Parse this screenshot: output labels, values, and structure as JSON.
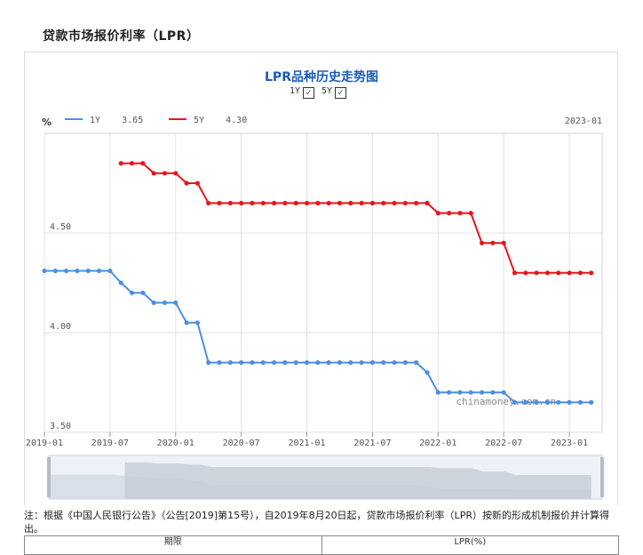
{
  "page": {
    "heading": "贷款市场报价利率（LPR）",
    "note": "注：根据《中国人民银行公告》（公告[2019]第15号），自2019年8月20日起，贷款市场报价利率（LPR）按新的形成机制报价并计算得出。",
    "table_headers": [
      "期限",
      "LPR(%)"
    ]
  },
  "controls": {
    "toggle_1y": "1Y",
    "toggle_5y": "5Y",
    "check_mark": "✓"
  },
  "colors": {
    "one_year": "#4a90e2",
    "five_year": "#e8141c",
    "title": "#1a5cb8"
  },
  "chart_data": {
    "type": "line",
    "title": "LPR品种历史走势图",
    "unit": "%",
    "legend_values": [
      "3.65",
      "4.30"
    ],
    "latest_label": "2023-01",
    "watermark": "chinamoney.com.cn",
    "x_ticks": [
      "2019-01",
      "2019-07",
      "2020-01",
      "2020-07",
      "2021-01",
      "2021-07",
      "2022-01",
      "2022-07",
      "2023-01"
    ],
    "y_ticks": [
      "3.50",
      "4.00",
      "4.50"
    ],
    "ylim": [
      3.5,
      5.0
    ],
    "xlim": [
      "2019-01",
      "2023-04"
    ],
    "grid": true,
    "legend_position": "top-left",
    "series": [
      {
        "name": "1Y",
        "x": [
          "2019-01",
          "2019-02",
          "2019-03",
          "2019-04",
          "2019-05",
          "2019-06",
          "2019-07",
          "2019-08",
          "2019-09",
          "2019-10",
          "2019-11",
          "2019-12",
          "2020-01",
          "2020-02",
          "2020-03",
          "2020-04",
          "2020-05",
          "2020-06",
          "2020-07",
          "2020-08",
          "2020-09",
          "2020-10",
          "2020-11",
          "2020-12",
          "2021-01",
          "2021-02",
          "2021-03",
          "2021-04",
          "2021-05",
          "2021-06",
          "2021-07",
          "2021-08",
          "2021-09",
          "2021-10",
          "2021-11",
          "2021-12",
          "2022-01",
          "2022-02",
          "2022-03",
          "2022-04",
          "2022-05",
          "2022-06",
          "2022-07",
          "2022-08",
          "2022-09",
          "2022-10",
          "2022-11",
          "2022-12",
          "2023-01",
          "2023-02",
          "2023-03"
        ],
        "values": [
          4.31,
          4.31,
          4.31,
          4.31,
          4.31,
          4.31,
          4.31,
          4.25,
          4.2,
          4.2,
          4.15,
          4.15,
          4.15,
          4.05,
          4.05,
          3.85,
          3.85,
          3.85,
          3.85,
          3.85,
          3.85,
          3.85,
          3.85,
          3.85,
          3.85,
          3.85,
          3.85,
          3.85,
          3.85,
          3.85,
          3.85,
          3.85,
          3.85,
          3.85,
          3.85,
          3.8,
          3.7,
          3.7,
          3.7,
          3.7,
          3.7,
          3.7,
          3.7,
          3.65,
          3.65,
          3.65,
          3.65,
          3.65,
          3.65,
          3.65,
          3.65
        ]
      },
      {
        "name": "5Y",
        "x": [
          "2019-08",
          "2019-09",
          "2019-10",
          "2019-11",
          "2019-12",
          "2020-01",
          "2020-02",
          "2020-03",
          "2020-04",
          "2020-05",
          "2020-06",
          "2020-07",
          "2020-08",
          "2020-09",
          "2020-10",
          "2020-11",
          "2020-12",
          "2021-01",
          "2021-02",
          "2021-03",
          "2021-04",
          "2021-05",
          "2021-06",
          "2021-07",
          "2021-08",
          "2021-09",
          "2021-10",
          "2021-11",
          "2021-12",
          "2022-01",
          "2022-02",
          "2022-03",
          "2022-04",
          "2022-05",
          "2022-06",
          "2022-07",
          "2022-08",
          "2022-09",
          "2022-10",
          "2022-11",
          "2022-12",
          "2023-01",
          "2023-02",
          "2023-03"
        ],
        "values": [
          4.85,
          4.85,
          4.85,
          4.8,
          4.8,
          4.8,
          4.75,
          4.75,
          4.65,
          4.65,
          4.65,
          4.65,
          4.65,
          4.65,
          4.65,
          4.65,
          4.65,
          4.65,
          4.65,
          4.65,
          4.65,
          4.65,
          4.65,
          4.65,
          4.65,
          4.65,
          4.65,
          4.65,
          4.65,
          4.6,
          4.6,
          4.6,
          4.6,
          4.45,
          4.45,
          4.45,
          4.3,
          4.3,
          4.3,
          4.3,
          4.3,
          4.3,
          4.3,
          4.3
        ]
      }
    ]
  }
}
